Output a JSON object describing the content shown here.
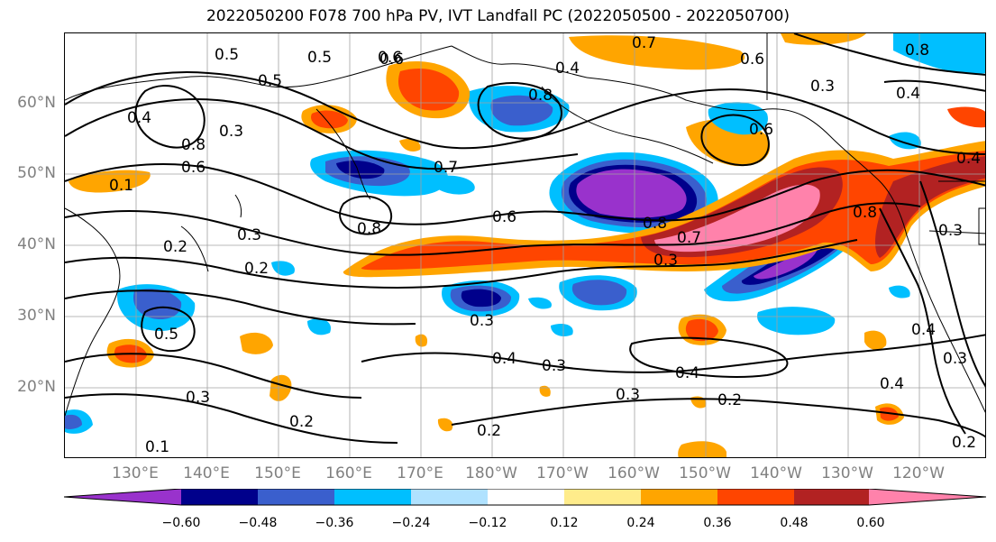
{
  "title": "2022050200 F078 700 hPa PV, IVT Landfall PC (2022050500 - 2022050700)",
  "map": {
    "lat_labels": [
      "60°N",
      "50°N",
      "40°N",
      "30°N",
      "20°N"
    ],
    "lon_labels": [
      "130°E",
      "140°E",
      "150°E",
      "160°E",
      "170°E",
      "180°W",
      "170°W",
      "160°W",
      "150°W",
      "140°W",
      "130°W",
      "120°W"
    ],
    "contour_labels": [
      "0.5",
      "0.5",
      "0.5",
      "0.6",
      "0.7",
      "0.8",
      "0.8",
      "0.6",
      "0.3",
      "0.4",
      "0.4",
      "0.8",
      "0.6",
      "0.7",
      "0.6",
      "0.8",
      "0.7",
      "0.3",
      "0.8",
      "0.2",
      "0.3",
      "0.2",
      "0.5",
      "0.3",
      "0.4",
      "0.3",
      "0.4",
      "0.3",
      "0.2",
      "0.2",
      "0.3",
      "0.2",
      "0.4",
      "0.3",
      "0.2",
      "0.4",
      "0.8",
      "0.1",
      "0.4",
      "0.6",
      "0.1",
      "0.6",
      "0.4",
      "0.3",
      "0.3"
    ]
  },
  "colorbar": {
    "colors": [
      "#9932CC",
      "#00008B",
      "#3A5FCD",
      "#00BFFF",
      "#B0E2FF",
      "#FFFFFF",
      "#FFEC8B",
      "#FFA500",
      "#FF4500",
      "#B22222",
      "#FF82AB"
    ],
    "ticks": [
      "−0.60",
      "−0.48",
      "−0.36",
      "−0.24",
      "−0.12",
      "0.12",
      "0.24",
      "0.36",
      "0.48",
      "0.60"
    ]
  }
}
